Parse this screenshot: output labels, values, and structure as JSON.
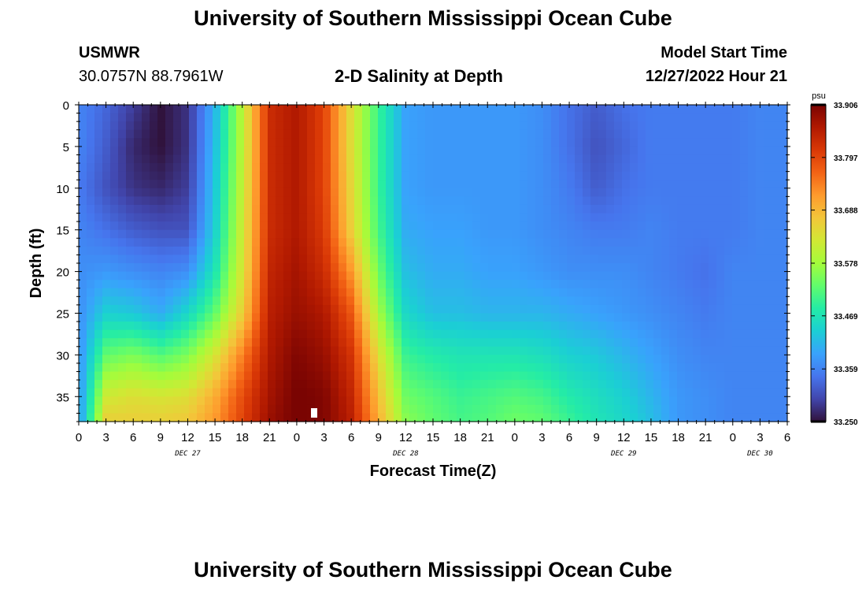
{
  "header": {
    "title": "University of Southern Mississippi Ocean Cube",
    "station": "USMWR",
    "coords": "30.0757N  88.7961W",
    "chart_title": "2-D Salinity at Depth",
    "start_label": "Model Start Time",
    "start_value": "12/27/2022 Hour 21"
  },
  "footer": {
    "title": "University of Southern Mississippi Ocean Cube"
  },
  "chart_data": {
    "type": "heatmap",
    "title": "2-D Salinity at Depth",
    "xlabel": "Forecast Time(Z)",
    "ylabel": "Depth (ft)",
    "x_range_hours": [
      0,
      78
    ],
    "y_range": [
      0,
      38
    ],
    "y_ticks": [
      "0",
      "5",
      "10",
      "15",
      "20",
      "25",
      "30",
      "35"
    ],
    "x_ticks": [
      "0",
      "3",
      "6",
      "9",
      "12",
      "15",
      "18",
      "21",
      "0",
      "3",
      "6",
      "9",
      "12",
      "15",
      "18",
      "21",
      "0",
      "3",
      "6",
      "9",
      "12",
      "15",
      "18",
      "21",
      "0",
      "3",
      "6"
    ],
    "date_labels": [
      {
        "label": "DEC 27",
        "hour": 12
      },
      {
        "label": "DEC 28",
        "hour": 36
      },
      {
        "label": "DEC 29",
        "hour": 60
      },
      {
        "label": "DEC 30",
        "hour": 75
      }
    ],
    "colorbar": {
      "unit": "psu",
      "min": 33.25,
      "max": 33.906,
      "tick_labels": [
        "33.906",
        "33.797",
        "33.688",
        "33.578",
        "33.469",
        "33.359",
        "33.250"
      ]
    },
    "colors": [
      "#30123b",
      "#4145ab",
      "#4675ed",
      "#39a2fc",
      "#1bcfd4",
      "#24eca6",
      "#61fc6c",
      "#a4fc3b",
      "#d1e834",
      "#f3c63a",
      "#fe9b2d",
      "#f36315",
      "#d93806",
      "#b11901",
      "#7a0402"
    ],
    "depths_ft": [
      0,
      5,
      10,
      15,
      20,
      25,
      30,
      35,
      38
    ],
    "time_hours": [
      0,
      3,
      6,
      9,
      12,
      15,
      18,
      21,
      24,
      27,
      30,
      33,
      36,
      39,
      42,
      45,
      48,
      51,
      54,
      57,
      60,
      63,
      66,
      69,
      72,
      75,
      78
    ],
    "values_psu": [
      [
        33.36,
        33.36,
        33.35,
        33.36,
        33.37,
        33.37,
        33.37,
        33.37,
        33.37
      ],
      [
        33.33,
        33.32,
        33.31,
        33.34,
        33.38,
        33.44,
        33.53,
        33.62,
        33.66
      ],
      [
        33.29,
        33.27,
        33.28,
        33.32,
        33.37,
        33.43,
        33.55,
        33.64,
        33.66
      ],
      [
        33.25,
        33.25,
        33.27,
        33.31,
        33.36,
        33.4,
        33.52,
        33.63,
        33.66
      ],
      [
        33.28,
        33.28,
        33.29,
        33.31,
        33.37,
        33.45,
        33.55,
        33.64,
        33.67
      ],
      [
        33.41,
        33.42,
        33.43,
        33.44,
        33.47,
        33.53,
        33.63,
        33.7,
        33.72
      ],
      [
        33.6,
        33.6,
        33.61,
        33.62,
        33.63,
        33.66,
        33.74,
        33.79,
        33.8
      ],
      [
        33.83,
        33.83,
        33.83,
        33.83,
        33.84,
        33.85,
        33.86,
        33.87,
        33.88
      ],
      [
        33.86,
        33.86,
        33.86,
        33.86,
        33.87,
        33.88,
        33.9,
        33.91,
        33.91
      ],
      [
        33.8,
        33.8,
        33.8,
        33.81,
        33.83,
        33.86,
        33.88,
        33.9,
        33.9
      ],
      [
        33.64,
        33.64,
        33.65,
        33.66,
        33.72,
        33.78,
        33.82,
        33.84,
        33.85
      ],
      [
        33.5,
        33.5,
        33.5,
        33.51,
        33.54,
        33.58,
        33.64,
        33.68,
        33.7
      ],
      [
        33.39,
        33.39,
        33.39,
        33.4,
        33.42,
        33.45,
        33.5,
        33.54,
        33.56
      ],
      [
        33.38,
        33.38,
        33.38,
        33.39,
        33.4,
        33.42,
        33.48,
        33.52,
        33.53
      ],
      [
        33.38,
        33.38,
        33.38,
        33.39,
        33.4,
        33.42,
        33.47,
        33.5,
        33.51
      ],
      [
        33.38,
        33.38,
        33.38,
        33.38,
        33.39,
        33.41,
        33.47,
        33.51,
        33.52
      ],
      [
        33.38,
        33.38,
        33.38,
        33.38,
        33.39,
        33.41,
        33.47,
        33.52,
        33.54
      ],
      [
        33.37,
        33.37,
        33.37,
        33.37,
        33.38,
        33.41,
        33.46,
        33.51,
        33.53
      ],
      [
        33.34,
        33.34,
        33.35,
        33.36,
        33.37,
        33.4,
        33.44,
        33.48,
        33.5
      ],
      [
        33.32,
        33.31,
        33.32,
        33.35,
        33.37,
        33.39,
        33.43,
        33.46,
        33.47
      ],
      [
        33.34,
        33.33,
        33.34,
        33.35,
        33.37,
        33.38,
        33.41,
        33.44,
        33.45
      ],
      [
        33.35,
        33.35,
        33.35,
        33.36,
        33.36,
        33.37,
        33.39,
        33.41,
        33.42
      ],
      [
        33.35,
        33.35,
        33.35,
        33.35,
        33.35,
        33.36,
        33.37,
        33.38,
        33.38
      ],
      [
        33.35,
        33.35,
        33.35,
        33.35,
        33.34,
        33.35,
        33.36,
        33.37,
        33.37
      ],
      [
        33.35,
        33.35,
        33.35,
        33.35,
        33.36,
        33.36,
        33.36,
        33.36,
        33.36
      ],
      [
        33.36,
        33.36,
        33.36,
        33.36,
        33.36,
        33.36,
        33.36,
        33.36,
        33.36
      ],
      [
        33.36,
        33.36,
        33.36,
        33.36,
        33.36,
        33.36,
        33.36,
        33.36,
        33.36
      ]
    ]
  }
}
